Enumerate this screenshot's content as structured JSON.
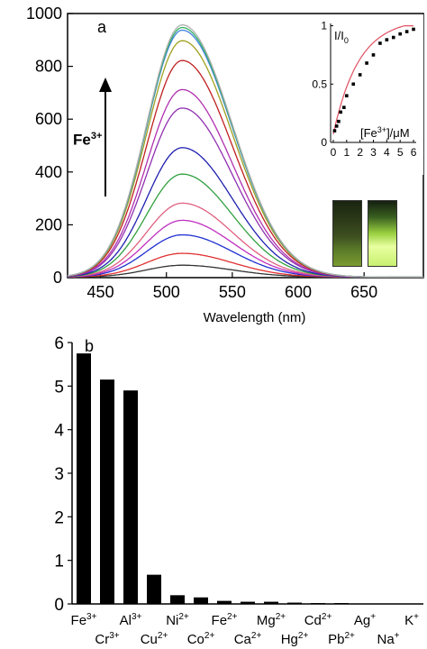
{
  "chart_data": [
    {
      "type": "line",
      "panel_label": "a",
      "xlabel": "Wavelength (nm)",
      "ylabel": "",
      "xlim": [
        425,
        695
      ],
      "ylim": [
        0,
        1000
      ],
      "x_ticks": [
        450,
        500,
        550,
        600,
        650
      ],
      "y_ticks": [
        0,
        200,
        400,
        600,
        800,
        1000
      ],
      "annotation": {
        "text": "Fe",
        "superscript": "3+"
      },
      "peak_nm": 512,
      "series_colors": [
        "#333333",
        "#e03030",
        "#2030d0",
        "#c030c0",
        "#e06080",
        "#30a040",
        "#2020b0",
        "#9030b0",
        "#b030b0",
        "#c02020",
        "#a0a020",
        "#4080e0",
        "#30b060",
        "#b0b0b0"
      ],
      "series": [
        {
          "peak": 45
        },
        {
          "peak": 90
        },
        {
          "peak": 160
        },
        {
          "peak": 215
        },
        {
          "peak": 280
        },
        {
          "peak": 390
        },
        {
          "peak": 490
        },
        {
          "peak": 640
        },
        {
          "peak": 710
        },
        {
          "peak": 820
        },
        {
          "peak": 895
        },
        {
          "peak": 935
        },
        {
          "peak": 945
        },
        {
          "peak": 955
        }
      ],
      "inset": {
        "type": "scatter",
        "ylabel": "I/I",
        "ylabel_sub": "0",
        "xlabel": "[Fe",
        "xlabel_sup": "3+",
        "xlabel_tail": "]/μM",
        "xlim": [
          -0.2,
          6.2
        ],
        "ylim": [
          0,
          1.02
        ],
        "x_ticks": [
          0,
          1,
          2,
          3,
          4,
          5,
          6
        ],
        "y_ticks": [
          0,
          0.5,
          1
        ],
        "y_tick_labels": [
          "0",
          "0.5",
          "1"
        ],
        "fit_color": "#e05060",
        "x": [
          0.1,
          0.25,
          0.4,
          0.55,
          0.8,
          1.0,
          1.5,
          2.0,
          2.5,
          3.0,
          3.5,
          4.0,
          4.5,
          5.0,
          5.5,
          6.0
        ],
        "y": [
          0.1,
          0.14,
          0.18,
          0.26,
          0.3,
          0.4,
          0.5,
          0.58,
          0.68,
          0.75,
          0.85,
          0.88,
          0.9,
          0.93,
          0.95,
          0.97
        ]
      }
    },
    {
      "type": "bar",
      "panel_label": "b",
      "xlabel": "",
      "ylabel": "",
      "ylim": [
        0,
        6
      ],
      "y_ticks": [
        0,
        1,
        2,
        3,
        4,
        5,
        6
      ],
      "bar_color": "#000000",
      "categories": [
        {
          "base": "Fe",
          "charge": "3+"
        },
        {
          "base": "Cr",
          "charge": "3+"
        },
        {
          "base": "Al",
          "charge": "3+"
        },
        {
          "base": "Cu",
          "charge": "2+"
        },
        {
          "base": "Ni",
          "charge": "2+"
        },
        {
          "base": "Co",
          "charge": "2+"
        },
        {
          "base": "Fe",
          "charge": "2+"
        },
        {
          "base": "Ca",
          "charge": "2+"
        },
        {
          "base": "Mg",
          "charge": "2+"
        },
        {
          "base": "Hg",
          "charge": "2+"
        },
        {
          "base": "Cd",
          "charge": "2+"
        },
        {
          "base": "Pb",
          "charge": "2+"
        },
        {
          "base": "Ag",
          "charge": "+"
        },
        {
          "base": "Na",
          "charge": "+"
        },
        {
          "base": "K",
          "charge": "+"
        }
      ],
      "values": [
        5.75,
        5.15,
        4.9,
        0.67,
        0.2,
        0.15,
        0.07,
        0.05,
        0.05,
        0.03,
        0.02,
        0.02,
        0.01,
        0.01,
        0.01
      ]
    }
  ]
}
